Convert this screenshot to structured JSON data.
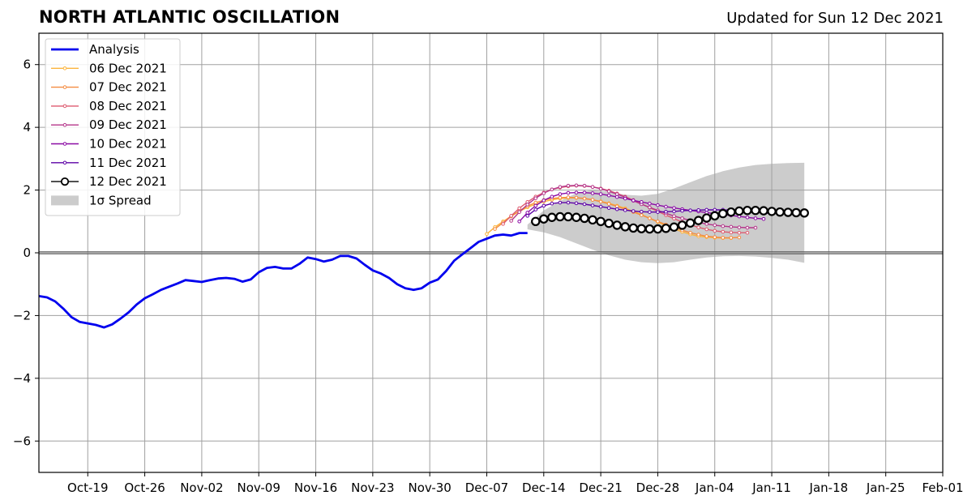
{
  "chart_data": {
    "type": "line",
    "title": "NORTH ATLANTIC OSCILLATION",
    "subtitle": "Updated for Sun 12 Dec 2021",
    "xlabel": "",
    "ylabel": "",
    "xlim": [
      "2021-10-13",
      "2022-02-01"
    ],
    "ylim": [
      -7,
      7
    ],
    "x_ticks": [
      "Oct-19",
      "Oct-26",
      "Nov-02",
      "Nov-09",
      "Nov-16",
      "Nov-23",
      "Nov-30",
      "Dec-07",
      "Dec-14",
      "Dec-21",
      "Dec-28",
      "Jan-04",
      "Jan-11",
      "Jan-18",
      "Jan-25",
      "Feb-01"
    ],
    "x_tick_dates": [
      "2021-10-19",
      "2021-10-26",
      "2021-11-02",
      "2021-11-09",
      "2021-11-16",
      "2021-11-23",
      "2021-11-30",
      "2021-12-07",
      "2021-12-14",
      "2021-12-21",
      "2021-12-28",
      "2022-01-04",
      "2022-01-11",
      "2022-01-18",
      "2022-01-25",
      "2022-02-01"
    ],
    "y_ticks": [
      -6,
      -4,
      -2,
      0,
      2,
      4,
      6
    ],
    "y_tick_labels": [
      "−6",
      "−4",
      "−2",
      "0",
      "2",
      "4",
      "6"
    ],
    "grid": true,
    "zero_line": true,
    "legend_position": "top-left",
    "analysis": {
      "name": "Analysis",
      "color": "#0000ee",
      "start_date": "2021-10-13",
      "values": [
        -1.38,
        -1.42,
        -1.55,
        -1.78,
        -2.05,
        -2.2,
        -2.25,
        -2.3,
        -2.38,
        -2.28,
        -2.1,
        -1.9,
        -1.65,
        -1.45,
        -1.32,
        -1.18,
        -1.08,
        -0.98,
        -0.87,
        -0.9,
        -0.93,
        -0.87,
        -0.82,
        -0.8,
        -0.83,
        -0.92,
        -0.85,
        -0.62,
        -0.48,
        -0.45,
        -0.5,
        -0.5,
        -0.35,
        -0.15,
        -0.2,
        -0.28,
        -0.22,
        -0.1,
        -0.1,
        -0.18,
        -0.38,
        -0.56,
        -0.66,
        -0.8,
        -1.0,
        -1.13,
        -1.18,
        -1.13,
        -0.95,
        -0.85,
        -0.58,
        -0.25,
        -0.05,
        0.15,
        0.35,
        0.45,
        0.55,
        0.58,
        0.55,
        0.63,
        0.63
      ]
    },
    "forecasts": [
      {
        "name": "06 Dec 2021",
        "color": "#fbb43c",
        "start_date": "2021-12-07",
        "values": [
          0.6,
          0.82,
          1.0,
          1.17,
          1.32,
          1.45,
          1.55,
          1.63,
          1.69,
          1.73,
          1.75,
          1.75,
          1.73,
          1.69,
          1.64,
          1.58,
          1.5,
          1.42,
          1.32,
          1.22,
          1.1,
          0.98,
          0.87,
          0.76,
          0.67,
          0.59,
          0.53,
          0.5,
          0.48,
          0.47,
          0.47
        ]
      },
      {
        "name": "07 Dec 2021",
        "color": "#f48b41",
        "start_date": "2021-12-08",
        "values": [
          0.76,
          0.96,
          1.16,
          1.34,
          1.49,
          1.6,
          1.68,
          1.73,
          1.76,
          1.77,
          1.76,
          1.73,
          1.69,
          1.63,
          1.56,
          1.48,
          1.39,
          1.3,
          1.2,
          1.1,
          1.0,
          0.9,
          0.81,
          0.72,
          0.64,
          0.58,
          0.53,
          0.5,
          0.48,
          0.48,
          0.49
        ]
      },
      {
        "name": "08 Dec 2021",
        "color": "#dd5a6f",
        "start_date": "2021-12-09",
        "values": [
          0.92,
          1.18,
          1.42,
          1.62,
          1.79,
          1.92,
          2.02,
          2.08,
          2.12,
          2.14,
          2.13,
          2.1,
          2.05,
          1.98,
          1.89,
          1.79,
          1.68,
          1.56,
          1.44,
          1.32,
          1.2,
          1.09,
          0.98,
          0.89,
          0.81,
          0.75,
          0.7,
          0.67,
          0.65,
          0.64,
          0.64
        ]
      },
      {
        "name": "09 Dec 2021",
        "color": "#b4358a",
        "start_date": "2021-12-10",
        "values": [
          1.02,
          1.3,
          1.54,
          1.74,
          1.9,
          2.02,
          2.1,
          2.14,
          2.15,
          2.14,
          2.1,
          2.04,
          1.96,
          1.87,
          1.77,
          1.66,
          1.55,
          1.45,
          1.35,
          1.26,
          1.17,
          1.1,
          1.03,
          0.97,
          0.92,
          0.88,
          0.85,
          0.83,
          0.81,
          0.8,
          0.8
        ]
      },
      {
        "name": "10 Dec 2021",
        "color": "#8b0aa5",
        "start_date": "2021-12-11",
        "values": [
          1.0,
          1.28,
          1.5,
          1.67,
          1.79,
          1.87,
          1.91,
          1.92,
          1.92,
          1.9,
          1.87,
          1.83,
          1.78,
          1.73,
          1.67,
          1.62,
          1.57,
          1.52,
          1.47,
          1.43,
          1.39,
          1.35,
          1.32,
          1.28,
          1.25,
          1.22,
          1.19,
          1.16,
          1.13,
          1.1,
          1.08
        ]
      },
      {
        "name": "11 Dec 2021",
        "color": "#5c01a6",
        "start_date": "2021-12-12",
        "values": [
          1.18,
          1.38,
          1.5,
          1.57,
          1.6,
          1.6,
          1.58,
          1.55,
          1.51,
          1.47,
          1.43,
          1.39,
          1.36,
          1.33,
          1.31,
          1.3,
          1.3,
          1.31,
          1.32,
          1.34,
          1.35,
          1.36,
          1.37,
          1.37,
          1.37,
          1.36,
          1.34,
          1.32,
          1.3,
          1.27,
          1.25
        ]
      },
      {
        "name": "12 Dec 2021",
        "color": "#000000",
        "start_date": "2021-12-13",
        "values": [
          1.0,
          1.08,
          1.13,
          1.15,
          1.15,
          1.13,
          1.1,
          1.05,
          1.0,
          0.94,
          0.88,
          0.83,
          0.79,
          0.77,
          0.76,
          0.76,
          0.78,
          0.82,
          0.88,
          0.95,
          1.03,
          1.11,
          1.18,
          1.25,
          1.3,
          1.33,
          1.35,
          1.35,
          1.34,
          1.32,
          1.3,
          1.29,
          1.28,
          1.27
        ]
      }
    ],
    "spread": {
      "name": "1σ Spread",
      "color": "#cccccc",
      "dates": [
        "2021-12-12",
        "2021-12-14",
        "2021-12-16",
        "2021-12-18",
        "2021-12-20",
        "2021-12-22",
        "2021-12-24",
        "2021-12-26",
        "2021-12-28",
        "2021-12-30",
        "2022-01-01",
        "2022-01-03",
        "2022-01-05",
        "2022-01-07",
        "2022-01-09",
        "2022-01-11",
        "2022-01-13",
        "2022-01-15"
      ],
      "upper": [
        0.9,
        1.35,
        1.65,
        1.9,
        2.0,
        1.95,
        1.85,
        1.82,
        1.88,
        2.05,
        2.25,
        2.45,
        2.6,
        2.72,
        2.8,
        2.84,
        2.86,
        2.87
      ],
      "lower": [
        0.75,
        0.65,
        0.5,
        0.3,
        0.1,
        -0.08,
        -0.22,
        -0.3,
        -0.33,
        -0.3,
        -0.22,
        -0.15,
        -0.11,
        -0.1,
        -0.12,
        -0.16,
        -0.22,
        -0.32
      ]
    }
  }
}
